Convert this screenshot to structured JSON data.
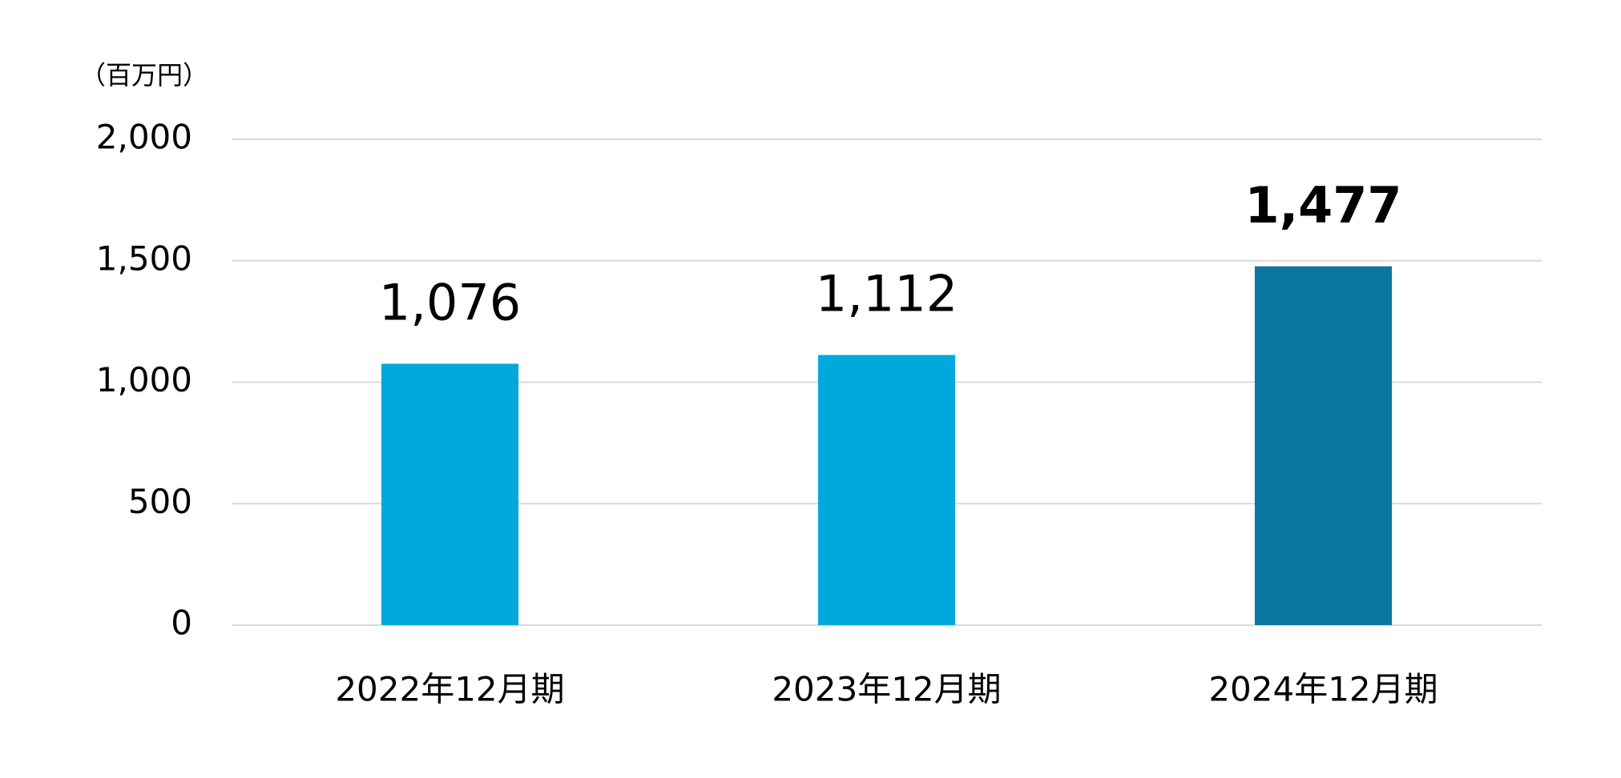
{
  "chart_data": {
    "type": "bar",
    "unit_label": "（百万円）",
    "categories": [
      "2022年12月期",
      "2023年12月期",
      "2024年12月期"
    ],
    "values": [
      1076,
      1112,
      1477
    ],
    "value_labels": [
      "1,076",
      "1,112",
      "1,477"
    ],
    "colors": [
      "#00a9dc",
      "#00a9dc",
      "#0b77a0"
    ],
    "ylim": [
      0,
      2000
    ],
    "yticks": [
      0,
      500,
      {
        "value": 1000,
        "label": "1,000"
      },
      {
        "value": 1500,
        "label": "1,500"
      },
      {
        "value": 2000,
        "label": "2,000"
      }
    ],
    "grid": true
  }
}
